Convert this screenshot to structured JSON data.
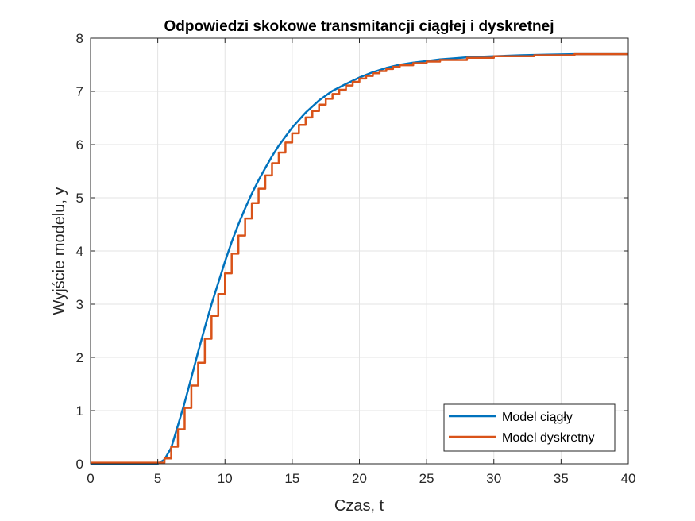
{
  "chart_data": {
    "type": "line",
    "title": "Odpowiedzi skokowe transmitancji ciągłej i dyskretnej",
    "xlabel": "Czas, t",
    "ylabel": "Wyjście modelu, y",
    "xlim": [
      0,
      40
    ],
    "ylim": [
      0,
      8
    ],
    "xticks": [
      "0",
      "5",
      "10",
      "15",
      "20",
      "25",
      "30",
      "35",
      "40"
    ],
    "yticks": [
      "0",
      "1",
      "2",
      "3",
      "4",
      "5",
      "6",
      "7",
      "8"
    ],
    "grid": true,
    "legend_position": "bottom-right",
    "series": [
      {
        "name": "Model ciągły",
        "color": "#0072BD",
        "style": "line",
        "x": [
          0,
          5,
          5.5,
          6,
          6.5,
          7,
          7.5,
          8,
          8.5,
          9,
          9.5,
          10,
          10.5,
          11,
          11.5,
          12,
          12.5,
          13,
          13.5,
          14,
          14.5,
          15,
          16,
          17,
          18,
          19,
          20,
          21,
          22,
          23,
          24,
          25,
          26,
          27,
          28,
          30,
          32,
          34,
          36,
          38,
          40
        ],
        "y": [
          0,
          0,
          0.08,
          0.3,
          0.72,
          1.15,
          1.62,
          2.1,
          2.56,
          3.0,
          3.4,
          3.8,
          4.17,
          4.5,
          4.8,
          5.08,
          5.33,
          5.56,
          5.78,
          5.98,
          6.15,
          6.32,
          6.6,
          6.83,
          7.01,
          7.14,
          7.26,
          7.36,
          7.44,
          7.5,
          7.54,
          7.57,
          7.6,
          7.62,
          7.64,
          7.66,
          7.68,
          7.69,
          7.7,
          7.7,
          7.7
        ]
      },
      {
        "name": "Model dyskretny",
        "color": "#D95319",
        "style": "stairs",
        "x": [
          0,
          5.5,
          6,
          6.5,
          7,
          7.5,
          8,
          8.5,
          9,
          9.5,
          10,
          10.5,
          11,
          11.5,
          12,
          12.5,
          13,
          13.5,
          14,
          14.5,
          15,
          15.5,
          16,
          16.5,
          17,
          17.5,
          18,
          18.5,
          19,
          19.5,
          20,
          20.5,
          21,
          21.5,
          22,
          22.5,
          23,
          24,
          25,
          26,
          28,
          30,
          33,
          36,
          40
        ],
        "y": [
          0.02,
          0.1,
          0.32,
          0.65,
          1.05,
          1.47,
          1.9,
          2.35,
          2.78,
          3.19,
          3.58,
          3.95,
          4.29,
          4.61,
          4.9,
          5.17,
          5.42,
          5.65,
          5.85,
          6.04,
          6.21,
          6.37,
          6.51,
          6.63,
          6.75,
          6.86,
          6.95,
          7.03,
          7.11,
          7.18,
          7.24,
          7.29,
          7.34,
          7.38,
          7.42,
          7.46,
          7.49,
          7.53,
          7.56,
          7.59,
          7.63,
          7.66,
          7.68,
          7.7,
          7.7
        ]
      }
    ]
  }
}
